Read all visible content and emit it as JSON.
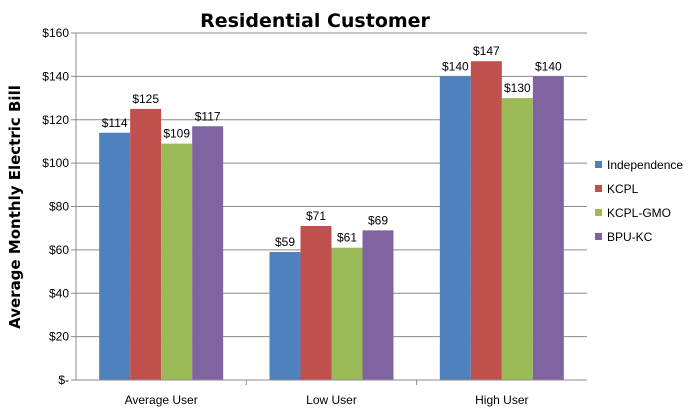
{
  "chart_data": {
    "type": "bar",
    "title": "Residential Customer",
    "xlabel": "",
    "ylabel": "Average Monthly Electric Bill",
    "categories": [
      "Average User",
      "Low User",
      "High User"
    ],
    "series": [
      {
        "name": "Independence",
        "values": [
          114,
          59,
          140
        ],
        "labels": [
          "$114",
          "$59",
          "$140"
        ],
        "color": "#4f81bd"
      },
      {
        "name": "KCPL",
        "values": [
          125,
          71,
          147
        ],
        "labels": [
          "$125",
          "$71",
          "$147"
        ],
        "color": "#c0504d"
      },
      {
        "name": "KCPL-GMO",
        "values": [
          109,
          61,
          130
        ],
        "labels": [
          "$109",
          "$61",
          "$130"
        ],
        "color": "#9bbb59"
      },
      {
        "name": "BPU-KC",
        "values": [
          117,
          69,
          140
        ],
        "labels": [
          "$117",
          "$69",
          "$140"
        ],
        "color": "#8064a2"
      }
    ],
    "ylim": [
      0,
      160
    ],
    "yticks": [
      {
        "value": 0,
        "label": "$-"
      },
      {
        "value": 20,
        "label": "$20"
      },
      {
        "value": 40,
        "label": "$40"
      },
      {
        "value": 60,
        "label": "$60"
      },
      {
        "value": 80,
        "label": "$80"
      },
      {
        "value": 100,
        "label": "$100"
      },
      {
        "value": 120,
        "label": "$120"
      },
      {
        "value": 140,
        "label": "$140"
      },
      {
        "value": 160,
        "label": "$160"
      }
    ],
    "grid": true,
    "legend_position": "right"
  }
}
